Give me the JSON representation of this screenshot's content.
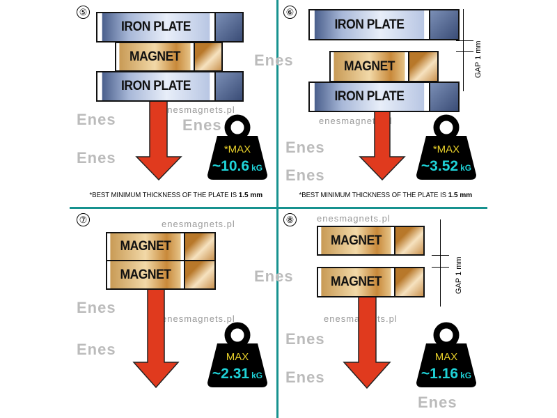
{
  "panels": [
    {
      "number": "⑤",
      "blocks": [
        "IRON PLATE",
        "MAGNET",
        "IRON PLATE"
      ],
      "weight": {
        "label": "*MAX",
        "value": "~10.6",
        "unit": "kG"
      },
      "footnote": {
        "text": "*BEST MINIMUM THICKNESS OF THE PLATE IS ",
        "value": "1.5 mm"
      }
    },
    {
      "number": "⑥",
      "blocks": [
        "IRON PLATE",
        "MAGNET",
        "IRON PLATE"
      ],
      "gap": "GAP  1 mm",
      "weight": {
        "label": "*MAX",
        "value": "~3.52",
        "unit": "kG"
      },
      "footnote": {
        "text": "*BEST MINIMUM THICKNESS OF THE PLATE IS ",
        "value": "1.5 mm"
      }
    },
    {
      "number": "⑦",
      "blocks": [
        "MAGNET",
        "MAGNET"
      ],
      "weight": {
        "label": "MAX",
        "value": "~2.31",
        "unit": "kG"
      }
    },
    {
      "number": "⑧",
      "blocks": [
        "MAGNET",
        "MAGNET"
      ],
      "gap": "GAP  1 mm",
      "weight": {
        "label": "MAX",
        "value": "~1.16",
        "unit": "kG"
      }
    }
  ],
  "watermark": {
    "site": "enesmagnets.pl",
    "logo": "Enes"
  },
  "colors": {
    "divider": "#17928f",
    "arrow": "#e03a1e",
    "weight_label": "#e8d02a",
    "weight_value": "#1fd3d8"
  }
}
